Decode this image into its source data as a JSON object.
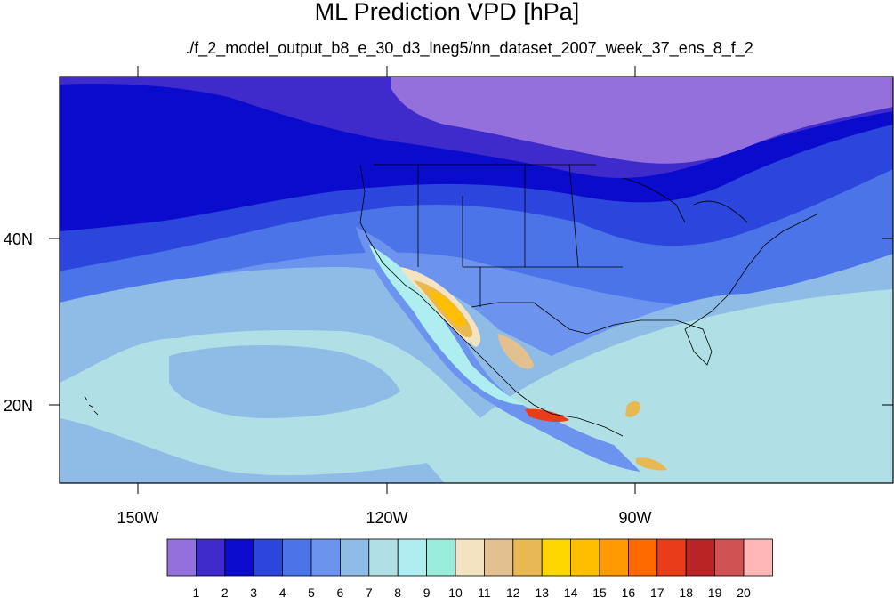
{
  "title": "ML Prediction VPD [hPa]",
  "subtitle": "./f_2_model_output_b8_e_30_d3_lneg5/nn_dataset_2007_week_37_ens_8_f_2",
  "axes": {
    "x_ticks": [
      "150W",
      "120W",
      "90W"
    ],
    "y_ticks": [
      "40N",
      "20N"
    ]
  },
  "colorbar": {
    "labels": [
      "1",
      "2",
      "3",
      "4",
      "5",
      "6",
      "7",
      "8",
      "9",
      "10",
      "11",
      "12",
      "13",
      "14",
      "15",
      "16",
      "17",
      "18",
      "19",
      "20"
    ],
    "colors": [
      "#9370db",
      "#3f2acc",
      "#0b0bcd",
      "#2b45dd",
      "#4a74e8",
      "#6c93ee",
      "#8fbce6",
      "#b0e0e6",
      "#aeeef0",
      "#98eedb",
      "#f3e3c0",
      "#e2c08f",
      "#e8b852",
      "#ffd700",
      "#ffbf00",
      "#ff9a00",
      "#ff6a00",
      "#e83c1a",
      "#bb2424",
      "#d05252",
      "#ffb6b6"
    ]
  },
  "map": {
    "lon_range": [
      -160,
      -60
    ],
    "lat_range": [
      11,
      60
    ]
  }
}
